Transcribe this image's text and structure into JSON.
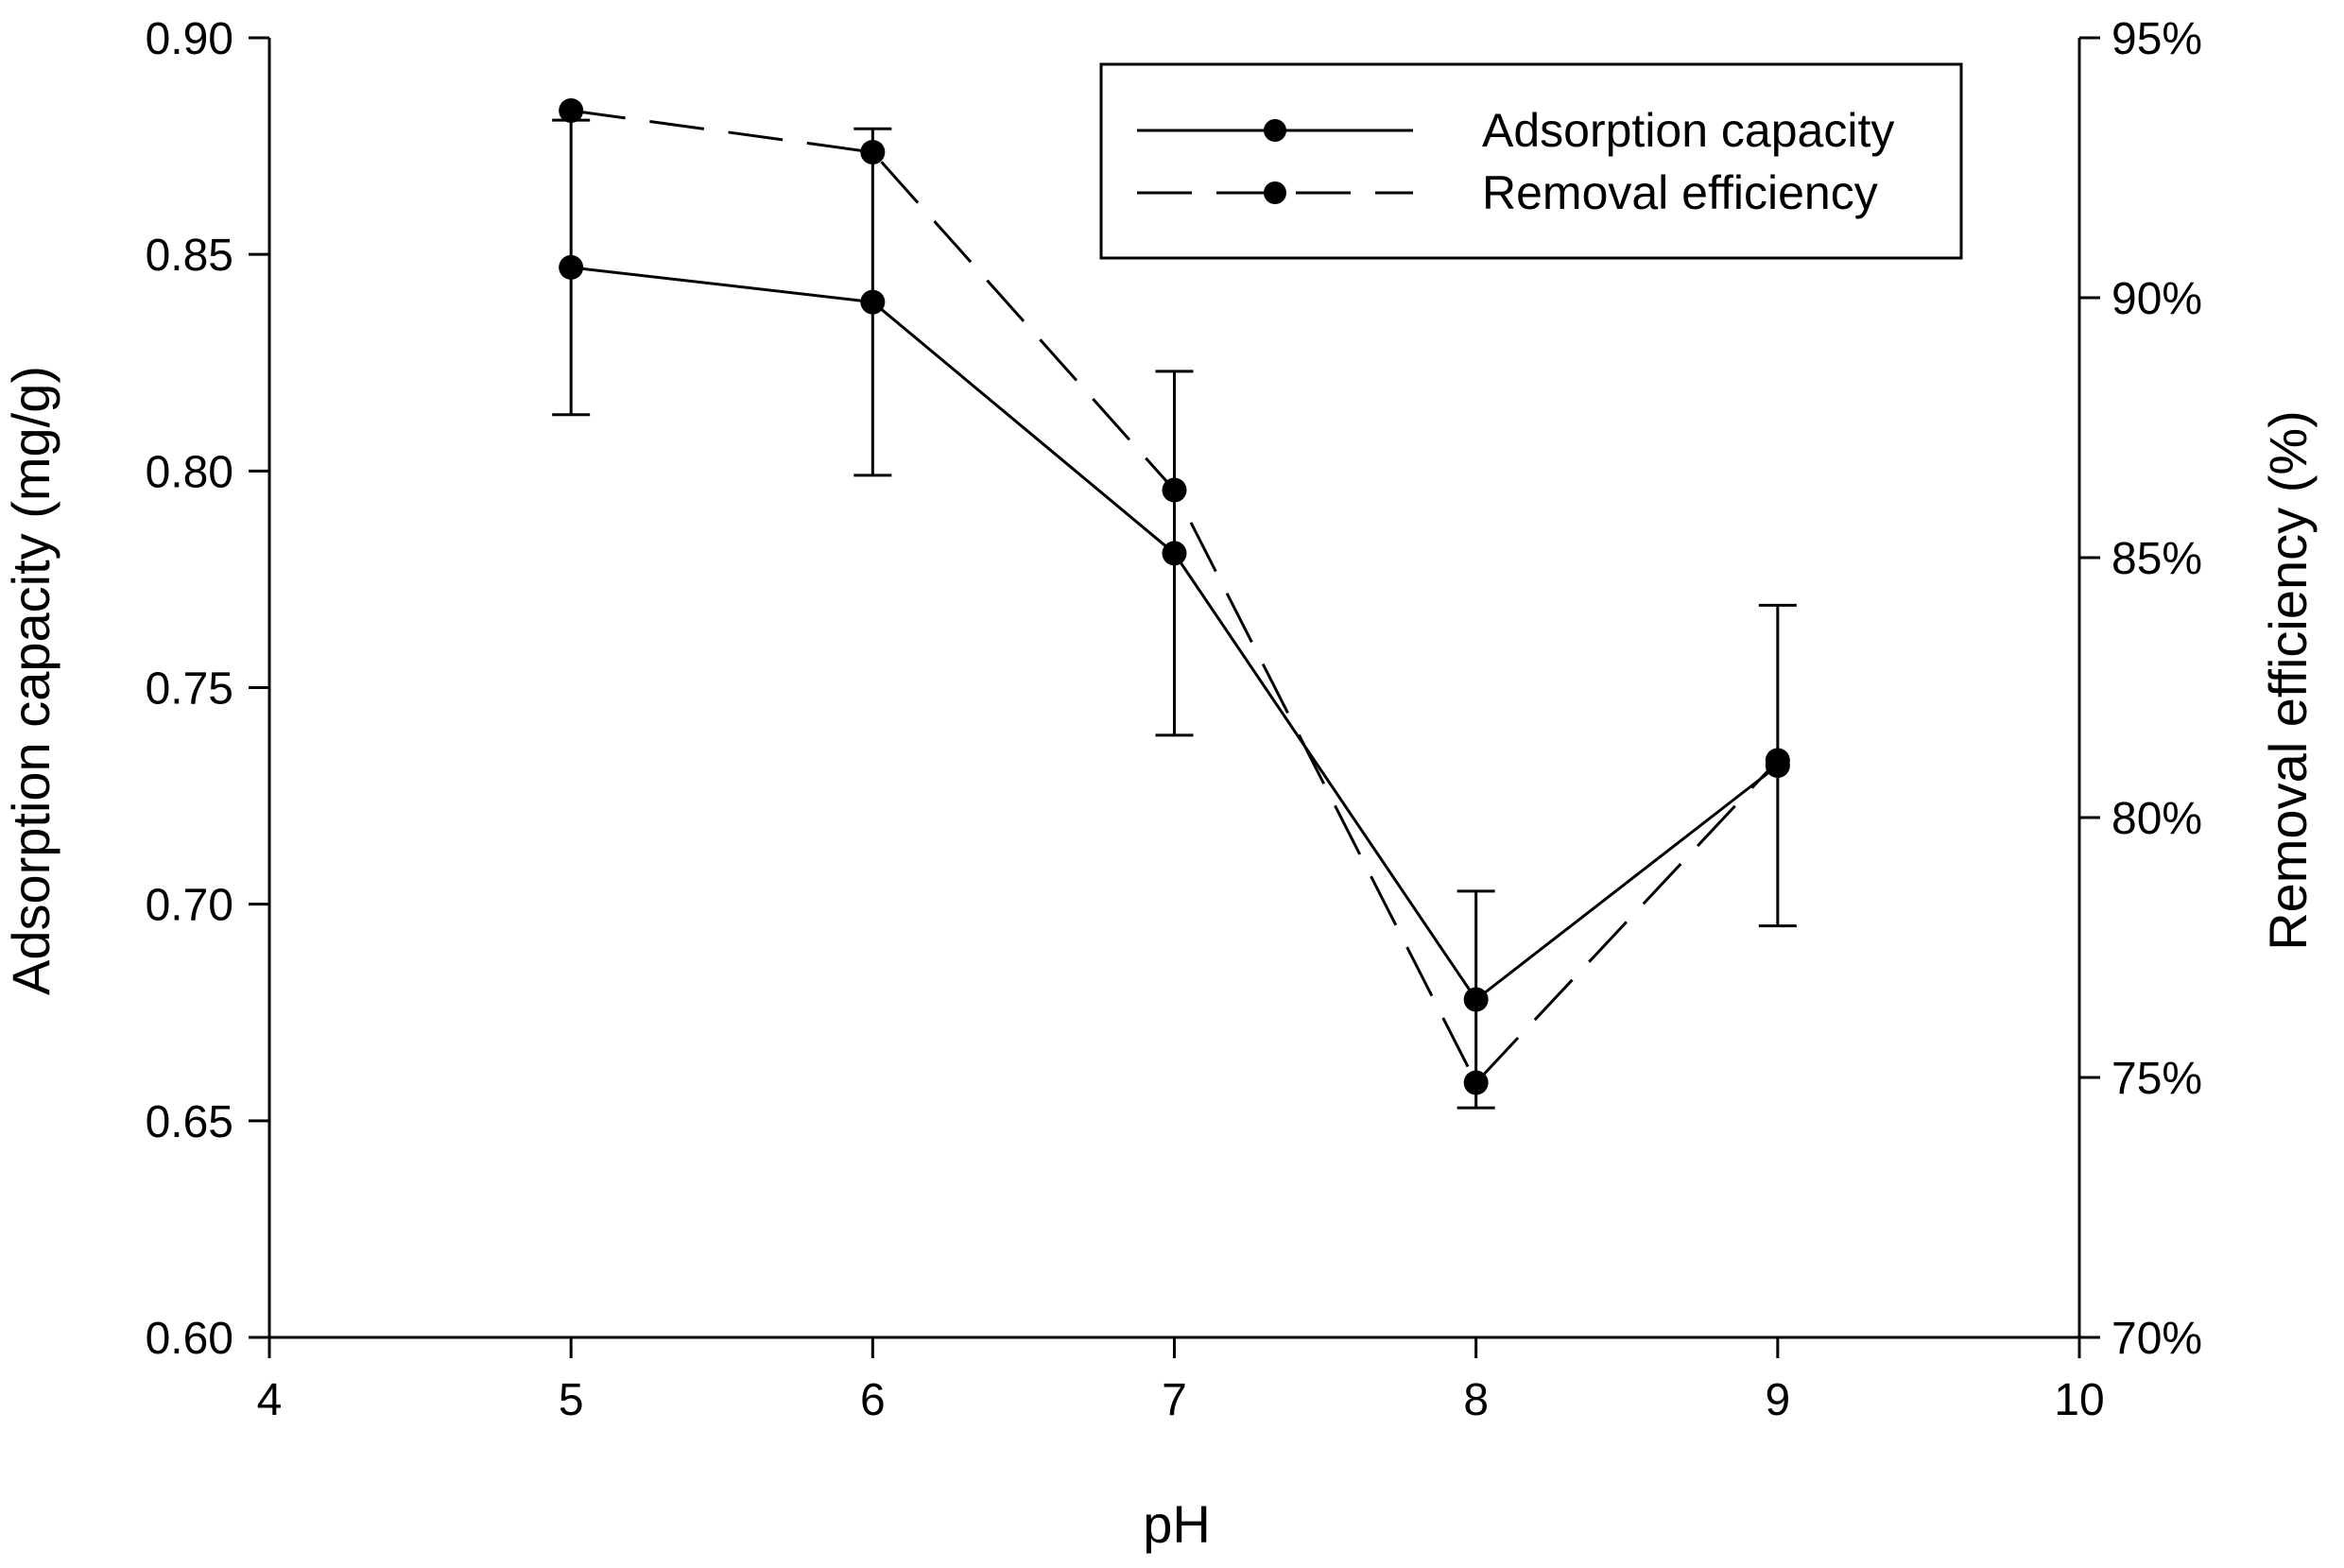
{
  "chart_data": {
    "type": "line",
    "xlabel": "pH",
    "ylabel": "Adsorption capacity (mg/g)",
    "y2label": "Removal efficiency (%)",
    "xlim": [
      4,
      10
    ],
    "ylim": [
      0.6,
      0.9
    ],
    "y2lim": [
      70,
      95
    ],
    "x_ticks": [
      "4",
      "5",
      "6",
      "7",
      "8",
      "9",
      "10"
    ],
    "y_ticks": [
      "0.60",
      "0.65",
      "0.70",
      "0.75",
      "0.80",
      "0.85",
      "0.90"
    ],
    "y2_ticks": [
      "70%",
      "75%",
      "80%",
      "85%",
      "90%",
      "95%"
    ],
    "grid": false,
    "legend_position": "top-right",
    "series": [
      {
        "name": "Adsorption capacity",
        "axis": "left",
        "line_style": "solid",
        "x": [
          5,
          6,
          7,
          8,
          9
        ],
        "values": [
          0.847,
          0.839,
          0.781,
          0.678,
          0.732
        ],
        "error": [
          0.034,
          0.04,
          0.042,
          0.025,
          0.037
        ]
      },
      {
        "name": "Removal efficiency",
        "axis": "right",
        "line_style": "dashed",
        "x": [
          5,
          6,
          7,
          8,
          9
        ],
        "values": [
          93.6,
          92.8,
          86.3,
          74.9,
          81.1
        ]
      }
    ]
  }
}
